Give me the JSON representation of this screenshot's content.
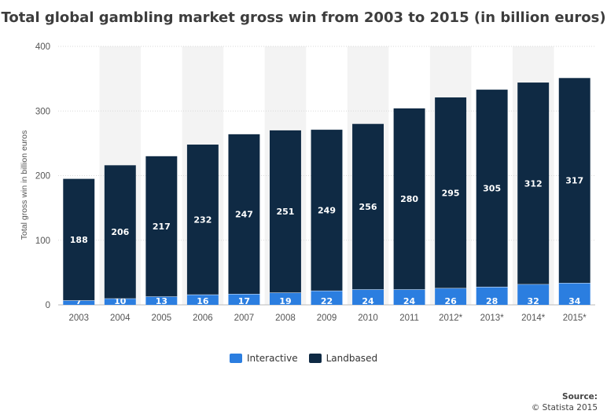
{
  "colors": {
    "interactive": "#2b7ee0",
    "landbased": "#0f2a44",
    "band": "#f3f3f3",
    "grid": "#d9d9d9"
  },
  "chart_data": {
    "type": "bar",
    "stacked": true,
    "title": "Total global gambling market gross win from 2003 to 2015 (in billion euros)",
    "ylabel": "Total gross win in billion euros",
    "xlabel": "",
    "ylim": [
      0,
      400
    ],
    "yticks": [
      0,
      100,
      200,
      300,
      400
    ],
    "categories": [
      "2003",
      "2004",
      "2005",
      "2006",
      "2007",
      "2008",
      "2009",
      "2010",
      "2011",
      "2012*",
      "2013*",
      "2014*",
      "2015*"
    ],
    "series": [
      {
        "name": "Interactive",
        "values": [
          7,
          10,
          13,
          16,
          17,
          19,
          22,
          24,
          24,
          26,
          28,
          32,
          34
        ]
      },
      {
        "name": "Landbased",
        "values": [
          188,
          206,
          217,
          232,
          247,
          251,
          249,
          256,
          280,
          295,
          305,
          312,
          317
        ]
      }
    ],
    "legend": "bottom-center"
  },
  "source": {
    "label": "Source:",
    "text": "© Statista 2015"
  }
}
